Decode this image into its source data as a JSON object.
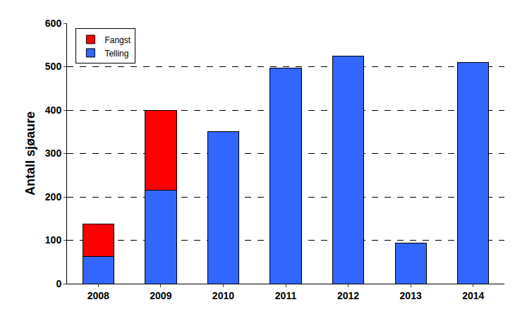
{
  "chart_data": {
    "type": "bar",
    "stacked": true,
    "y_label": "Antall sjøaure",
    "categories": [
      "2008",
      "2009",
      "2010",
      "2011",
      "2012",
      "2013",
      "2014"
    ],
    "series": [
      {
        "name": "Telling",
        "color": "#3366ff",
        "values": [
          62,
          215,
          351,
          497,
          524,
          93,
          510
        ]
      },
      {
        "name": "Fangst",
        "color": "#ff0000",
        "values": [
          76,
          185,
          0,
          0,
          0,
          0,
          0
        ]
      }
    ],
    "ylim": [
      0,
      600
    ],
    "yticks": [
      0,
      100,
      200,
      300,
      400,
      500,
      600
    ],
    "grid": true,
    "legend": "top-left"
  }
}
